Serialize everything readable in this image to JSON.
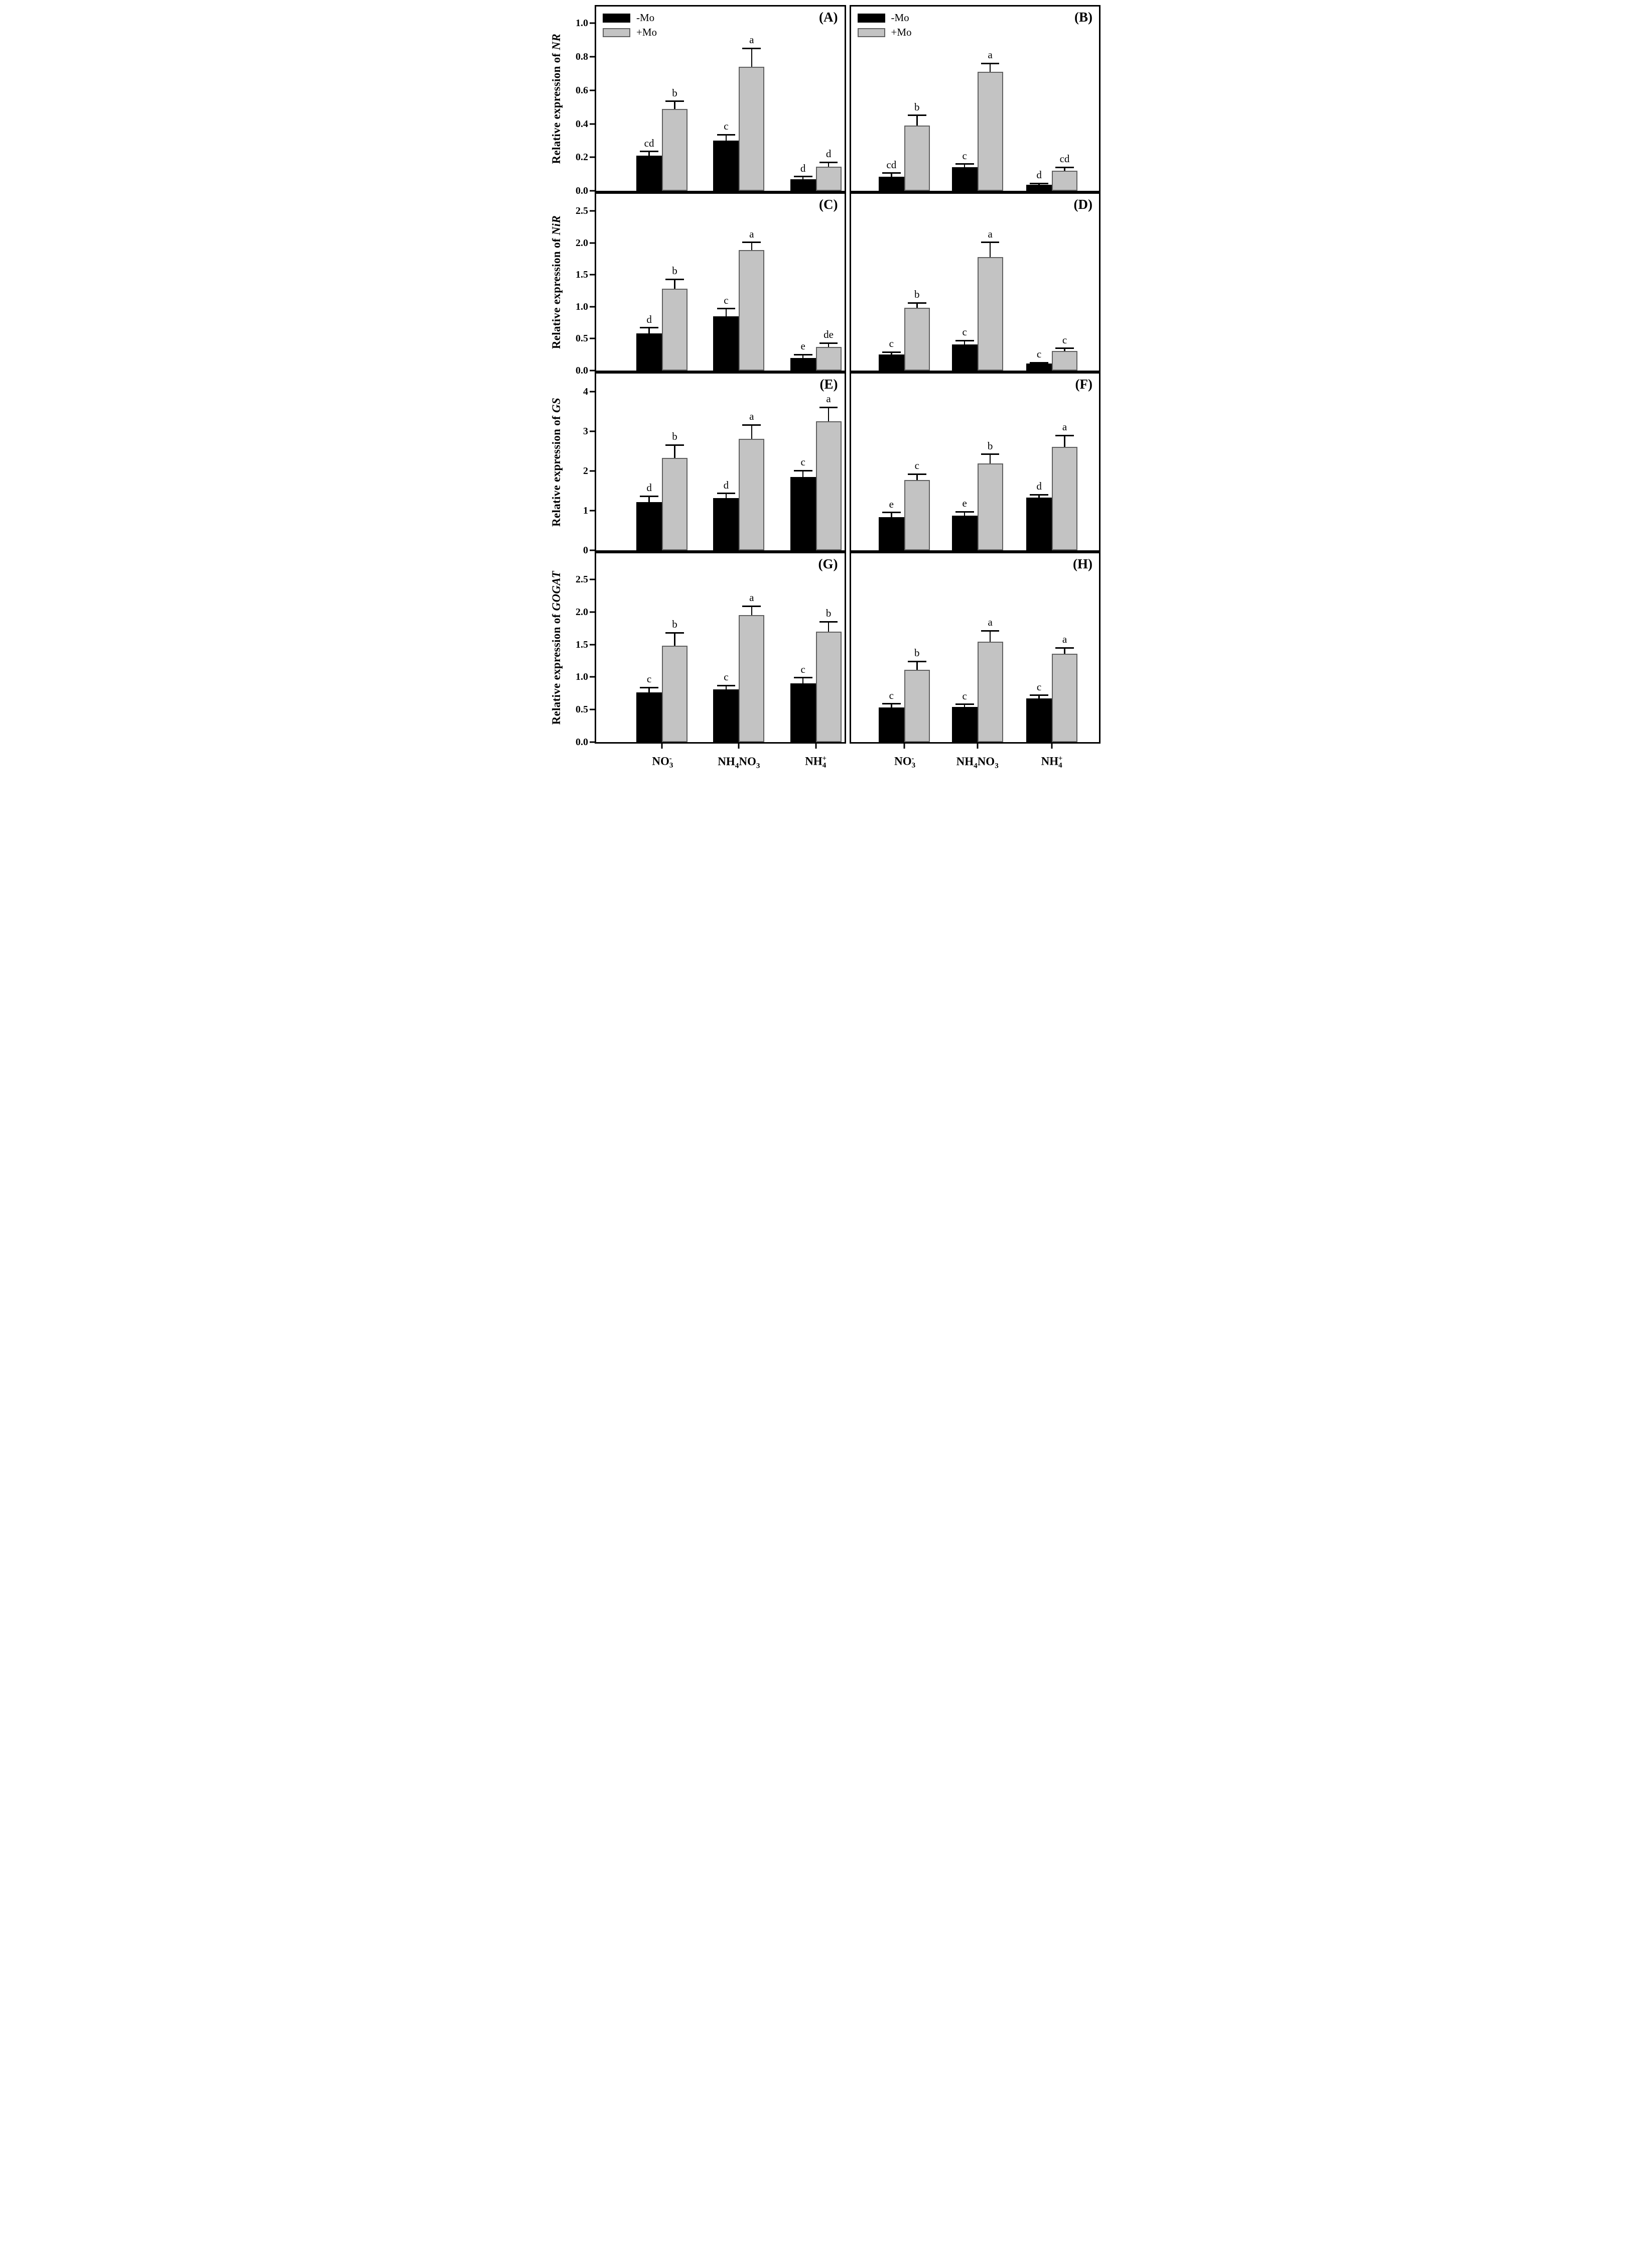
{
  "chart_data": {
    "type": "bar",
    "layout_hint": "8 panels in 4 rows x 2 columns, shared y-axis per row, legend only in top row panels, error bars with caps, significance letters above bars",
    "colors": {
      "neg": "#000000",
      "pos": "#c3c3c3",
      "pos_border": "#606060"
    },
    "legend": [
      {
        "key": "neg",
        "label": "-Mo"
      },
      {
        "key": "pos",
        "label": "+Mo"
      }
    ],
    "categories_plain": [
      "NO3-",
      "NH4NO3",
      "NH4+"
    ],
    "categories": [
      [
        {
          "t": "NO"
        },
        {
          "t": "3",
          "s": "sub"
        },
        {
          "t": "-",
          "s": "sup"
        }
      ],
      [
        {
          "t": "NH"
        },
        {
          "t": "4",
          "s": "sub"
        },
        {
          "t": "NO"
        },
        {
          "t": "3",
          "s": "sub"
        }
      ],
      [
        {
          "t": "NH"
        },
        {
          "t": "4",
          "s": "sub"
        },
        {
          "t": "+",
          "s": "sup"
        }
      ]
    ],
    "rows": [
      {
        "ylabel_prefix": "Relative expression of ",
        "gene": "NR",
        "ylim": [
          0,
          1.1
        ],
        "yticks": [
          "0.0",
          "0.2",
          "0.4",
          "0.6",
          "0.8",
          "1.0"
        ],
        "panels": [
          {
            "label": "(A)",
            "legend": true,
            "series": [
              {
                "key": "neg",
                "name": "-Mo",
                "values": [
                  0.21,
                  0.3,
                  0.07
                ],
                "errors": [
                  0.025,
                  0.035,
                  0.015
                ],
                "letters": [
                  "cd",
                  "c",
                  "d"
                ]
              },
              {
                "key": "pos",
                "name": "+Mo",
                "values": [
                  0.49,
                  0.74,
                  0.145
                ],
                "errors": [
                  0.045,
                  0.11,
                  0.025
                ],
                "letters": [
                  "b",
                  "a",
                  "d"
                ]
              }
            ]
          },
          {
            "label": "(B)",
            "legend": true,
            "series": [
              {
                "key": "neg",
                "name": "-Mo",
                "values": [
                  0.085,
                  0.14,
                  0.035
                ],
                "errors": [
                  0.02,
                  0.02,
                  0.01
                ],
                "letters": [
                  "cd",
                  "c",
                  "d"
                ]
              },
              {
                "key": "pos",
                "name": "+Mo",
                "values": [
                  0.39,
                  0.71,
                  0.12
                ],
                "errors": [
                  0.06,
                  0.05,
                  0.02
                ],
                "letters": [
                  "b",
                  "a",
                  "cd"
                ]
              }
            ]
          }
        ]
      },
      {
        "ylabel_prefix": "Relative expression of ",
        "gene": "NiR",
        "ylim": [
          0,
          2.77
        ],
        "yticks": [
          "0.0",
          "0.5",
          "1.0",
          "1.5",
          "2.0",
          "2.5"
        ],
        "panels": [
          {
            "label": "(C)",
            "legend": false,
            "series": [
              {
                "key": "neg",
                "name": "-Mo",
                "values": [
                  0.58,
                  0.85,
                  0.2
                ],
                "errors": [
                  0.09,
                  0.12,
                  0.05
                ],
                "letters": [
                  "d",
                  "c",
                  "e"
                ]
              },
              {
                "key": "pos",
                "name": "+Mo",
                "values": [
                  1.28,
                  1.89,
                  0.37
                ],
                "errors": [
                  0.15,
                  0.12,
                  0.06
                ],
                "letters": [
                  "b",
                  "a",
                  "de"
                ]
              }
            ]
          },
          {
            "label": "(D)",
            "legend": false,
            "series": [
              {
                "key": "neg",
                "name": "-Mo",
                "values": [
                  0.25,
                  0.41,
                  0.11
                ],
                "errors": [
                  0.04,
                  0.06,
                  0.015
                ],
                "letters": [
                  "c",
                  "c",
                  "c"
                ]
              },
              {
                "key": "pos",
                "name": "+Mo",
                "values": [
                  0.98,
                  1.78,
                  0.31
                ],
                "errors": [
                  0.08,
                  0.23,
                  0.04
                ],
                "letters": [
                  "b",
                  "a",
                  "c"
                ]
              }
            ]
          }
        ]
      },
      {
        "ylabel_prefix": "Relative expression of ",
        "gene": "GS",
        "ylim": [
          0,
          4.45
        ],
        "yticks": [
          "0",
          "1",
          "2",
          "3",
          "4"
        ],
        "panels": [
          {
            "label": "(E)",
            "legend": false,
            "series": [
              {
                "key": "neg",
                "name": "-Mo",
                "values": [
                  1.22,
                  1.31,
                  1.85
                ],
                "errors": [
                  0.14,
                  0.12,
                  0.16
                ],
                "letters": [
                  "d",
                  "d",
                  "c"
                ]
              },
              {
                "key": "pos",
                "name": "+Mo",
                "values": [
                  2.33,
                  2.81,
                  3.25
                ],
                "errors": [
                  0.32,
                  0.35,
                  0.35
                ],
                "letters": [
                  "b",
                  "a",
                  "a"
                ]
              }
            ]
          },
          {
            "label": "(F)",
            "legend": false,
            "series": [
              {
                "key": "neg",
                "name": "-Mo",
                "values": [
                  0.83,
                  0.87,
                  1.33
                ],
                "errors": [
                  0.12,
                  0.1,
                  0.07
                ],
                "letters": [
                  "e",
                  "e",
                  "d"
                ]
              },
              {
                "key": "pos",
                "name": "+Mo",
                "values": [
                  1.77,
                  2.19,
                  2.61
                ],
                "errors": [
                  0.15,
                  0.23,
                  0.28
                ],
                "letters": [
                  "c",
                  "b",
                  "a"
                ]
              }
            ]
          }
        ]
      },
      {
        "ylabel_prefix": "Relative expression of ",
        "gene": "GOGAT",
        "ylim": [
          0,
          2.9
        ],
        "yticks": [
          "0.0",
          "0.5",
          "1.0",
          "1.5",
          "2.0",
          "2.5"
        ],
        "panels": [
          {
            "label": "(G)",
            "legend": false,
            "series": [
              {
                "key": "neg",
                "name": "-Mo",
                "values": [
                  0.76,
                  0.81,
                  0.9
                ],
                "errors": [
                  0.08,
                  0.06,
                  0.09
                ],
                "letters": [
                  "c",
                  "c",
                  "c"
                ]
              },
              {
                "key": "pos",
                "name": "+Mo",
                "values": [
                  1.48,
                  1.95,
                  1.7
                ],
                "errors": [
                  0.2,
                  0.14,
                  0.15
                ],
                "letters": [
                  "b",
                  "a",
                  "b"
                ]
              }
            ]
          },
          {
            "label": "(H)",
            "legend": false,
            "series": [
              {
                "key": "neg",
                "name": "-Mo",
                "values": [
                  0.53,
                  0.54,
                  0.67
                ],
                "errors": [
                  0.06,
                  0.04,
                  0.05
                ],
                "letters": [
                  "c",
                  "c",
                  "c"
                ]
              },
              {
                "key": "pos",
                "name": "+Mo",
                "values": [
                  1.11,
                  1.54,
                  1.36
                ],
                "errors": [
                  0.13,
                  0.17,
                  0.09
                ],
                "letters": [
                  "b",
                  "a",
                  "a"
                ]
              }
            ]
          }
        ]
      }
    ]
  }
}
